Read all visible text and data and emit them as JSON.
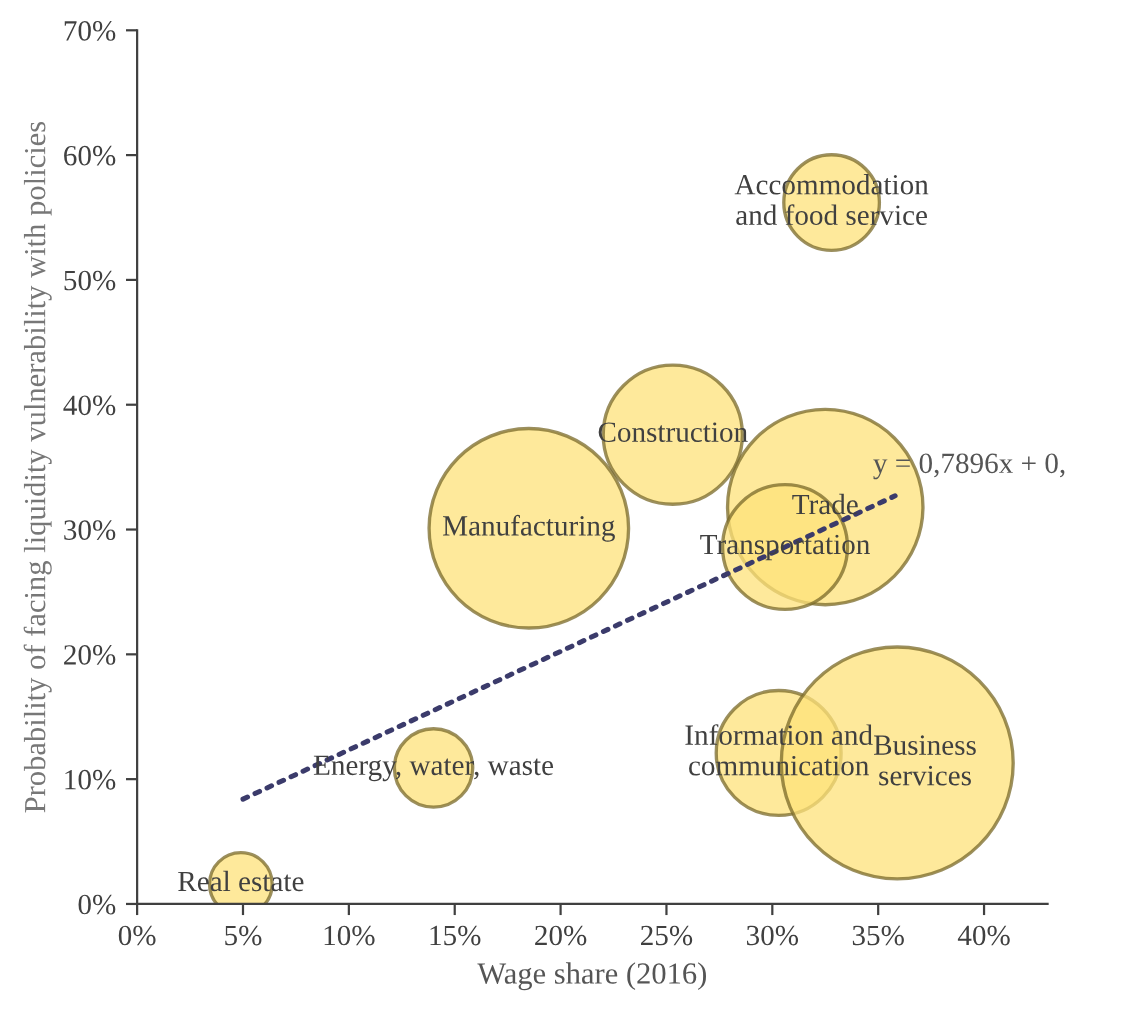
{
  "chart_data": {
    "type": "bubble",
    "xlabel": "Wage share (2016)",
    "ylabel": "Probability of facing liquidity vulnerability with policies",
    "xlim": [
      0,
      43
    ],
    "ylim": [
      0,
      70
    ],
    "xticks": [
      {
        "value": 0,
        "label": "0%"
      },
      {
        "value": 5,
        "label": "5%"
      },
      {
        "value": 10,
        "label": "10%"
      },
      {
        "value": 15,
        "label": "15%"
      },
      {
        "value": 20,
        "label": "20%"
      },
      {
        "value": 25,
        "label": "25%"
      },
      {
        "value": 30,
        "label": "30%"
      },
      {
        "value": 35,
        "label": "35%"
      },
      {
        "value": 40,
        "label": "40%"
      }
    ],
    "yticks": [
      {
        "value": 0,
        "label": "0%"
      },
      {
        "value": 10,
        "label": "10%"
      },
      {
        "value": 20,
        "label": "20%"
      },
      {
        "value": 30,
        "label": "30%"
      },
      {
        "value": 40,
        "label": "40%"
      },
      {
        "value": 50,
        "label": "50%"
      },
      {
        "value": 60,
        "label": "60%"
      },
      {
        "value": 70,
        "label": "70%"
      }
    ],
    "grid": false,
    "legend": false,
    "series": [
      {
        "color": "#fde27a",
        "x": [
          4.9,
          14.0,
          18.5,
          25.3,
          32.8,
          32.5,
          30.6,
          30.3,
          35.9
        ],
        "values": [
          1.6,
          10.9,
          30.1,
          37.6,
          56.2,
          31.8,
          28.6,
          12.1,
          11.3
        ],
        "sizes": [
          0.073,
          0.114,
          0.74,
          0.36,
          0.17,
          0.71,
          0.29,
          0.29,
          1
        ]
      },
      {
        "type": "line",
        "color": "#3b3b6b",
        "line_style": "dotted",
        "marker": "none",
        "x": [
          5,
          35.8
        ],
        "values": [
          8.4,
          32.7
        ]
      }
    ],
    "annotations": [
      {
        "text": "Real estate",
        "x": 4.9,
        "y": 1.6
      },
      {
        "text": "Energy, water, waste",
        "x": 14.0,
        "y": 10.9
      },
      {
        "text": "Manufacturing",
        "x": 18.5,
        "y": 30.1
      },
      {
        "text": "Construction",
        "x": 25.3,
        "y": 37.6
      },
      {
        "text": "Accommodation\nand food service",
        "x": 32.8,
        "y": 56.2
      },
      {
        "text": "Trade",
        "x": 32.5,
        "y": 31.8
      },
      {
        "text": "Transportation",
        "x": 30.6,
        "y": 28.6
      },
      {
        "text": "Information and\ncommunication",
        "x": 30.3,
        "y": 12.1
      },
      {
        "text": "Business\nservices",
        "x": 35.9,
        "y": 11.3
      },
      {
        "text": "y = 0,7896x + 0,",
        "x": 35.8,
        "y": 32.7
      }
    ]
  }
}
